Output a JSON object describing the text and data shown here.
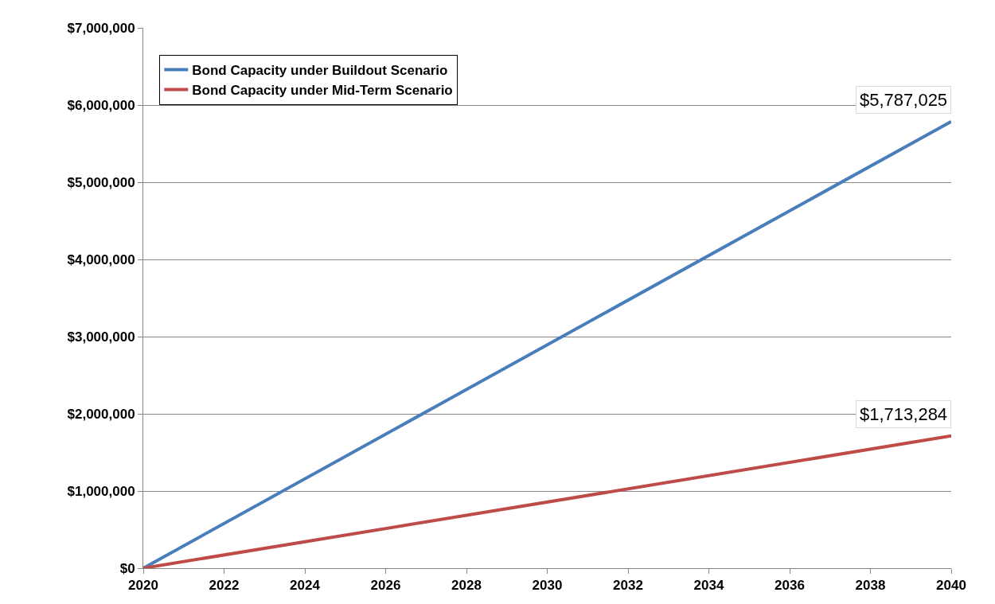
{
  "chart_data": {
    "type": "line",
    "x": [
      2020,
      2040
    ],
    "series": [
      {
        "name": "Bond Capacity under Buildout Scenario",
        "color": "#4a7ebb",
        "values": [
          0,
          5787025
        ]
      },
      {
        "name": "Bond Capacity under Mid-Term Scenario",
        "color": "#be4b48",
        "values": [
          0,
          1713284
        ]
      }
    ],
    "xlim": [
      2020,
      2040
    ],
    "xticks": [
      2020,
      2022,
      2024,
      2026,
      2028,
      2030,
      2032,
      2034,
      2036,
      2038,
      2040
    ],
    "ylim": [
      0,
      7000000
    ],
    "yticks": [
      {
        "value": 0,
        "label": "$0"
      },
      {
        "value": 1000000,
        "label": "$1,000,000"
      },
      {
        "value": 2000000,
        "label": "$2,000,000"
      },
      {
        "value": 3000000,
        "label": "$3,000,000"
      },
      {
        "value": 4000000,
        "label": "$4,000,000"
      },
      {
        "value": 5000000,
        "label": "$5,000,000"
      },
      {
        "value": 6000000,
        "label": "$6,000,000"
      },
      {
        "value": 7000000,
        "label": "$7,000,000"
      }
    ],
    "annotations": [
      {
        "text": "$5,787,025",
        "x": 2040,
        "y": 5787025
      },
      {
        "text": "$1,713,284",
        "x": 2040,
        "y": 1713284
      }
    ],
    "grid": "y",
    "legend": "top left",
    "marker": "none",
    "line_style": "solid"
  }
}
